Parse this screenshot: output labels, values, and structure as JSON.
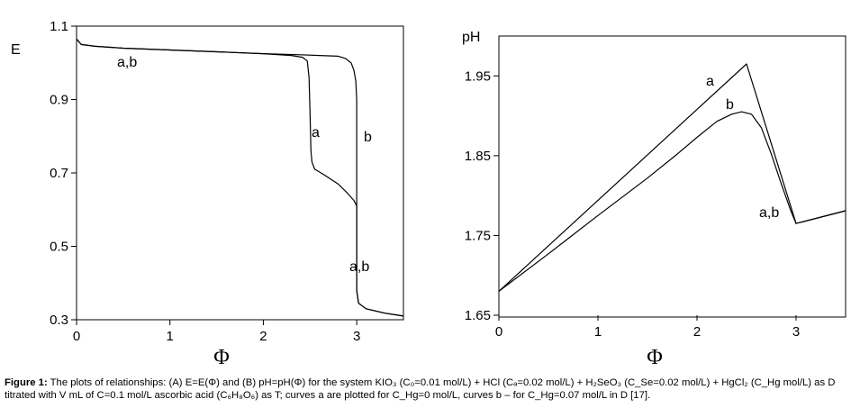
{
  "chart_data": [
    {
      "type": "line",
      "ylabel": "E",
      "xlabel": "Φ",
      "xlim": [
        0,
        3.5
      ],
      "ylim": [
        0.3,
        1.1
      ],
      "x_ticks": [
        "0",
        "1",
        "2",
        "3"
      ],
      "y_ticks": [
        "1.1",
        "0.9",
        "0.7",
        "0.5",
        "0.3"
      ],
      "annotations": [
        "a,b",
        "a",
        "b",
        "a,b"
      ],
      "series": [
        {
          "curve": "a",
          "points": [
            [
              0,
              1.065
            ],
            [
              0.05,
              1.05
            ],
            [
              0.2,
              1.045
            ],
            [
              0.5,
              1.04
            ],
            [
              1.0,
              1.035
            ],
            [
              1.5,
              1.03
            ],
            [
              2.0,
              1.025
            ],
            [
              2.3,
              1.02
            ],
            [
              2.42,
              1.015
            ],
            [
              2.47,
              1.005
            ],
            [
              2.49,
              0.96
            ],
            [
              2.5,
              0.86
            ],
            [
              2.51,
              0.76
            ],
            [
              2.52,
              0.73
            ],
            [
              2.55,
              0.71
            ],
            [
              2.65,
              0.695
            ],
            [
              2.8,
              0.67
            ],
            [
              2.9,
              0.645
            ],
            [
              2.97,
              0.625
            ],
            [
              3.0,
              0.61
            ],
            [
              3.0,
              0.38
            ],
            [
              3.02,
              0.345
            ],
            [
              3.1,
              0.33
            ],
            [
              3.3,
              0.318
            ],
            [
              3.5,
              0.31
            ]
          ]
        },
        {
          "curve": "b",
          "points": [
            [
              0,
              1.065
            ],
            [
              0.05,
              1.05
            ],
            [
              0.2,
              1.045
            ],
            [
              0.5,
              1.04
            ],
            [
              1.0,
              1.035
            ],
            [
              1.5,
              1.03
            ],
            [
              2.0,
              1.025
            ],
            [
              2.4,
              1.022
            ],
            [
              2.6,
              1.02
            ],
            [
              2.8,
              1.018
            ],
            [
              2.88,
              1.012
            ],
            [
              2.94,
              1.0
            ],
            [
              2.97,
              0.98
            ],
            [
              2.99,
              0.95
            ],
            [
              3.0,
              0.9
            ],
            [
              3.0,
              0.38
            ],
            [
              3.02,
              0.345
            ],
            [
              3.1,
              0.33
            ],
            [
              3.3,
              0.318
            ],
            [
              3.5,
              0.31
            ]
          ]
        }
      ]
    },
    {
      "type": "line",
      "ylabel": "pH",
      "xlabel": "Φ",
      "xlim": [
        0,
        3.5
      ],
      "ylim": [
        1.65,
        2.0
      ],
      "x_ticks": [
        "0",
        "1",
        "2",
        "3"
      ],
      "y_ticks": [
        "1.95",
        "1.85",
        "1.75",
        "1.65"
      ],
      "annotations": [
        "a",
        "b",
        "a,b"
      ],
      "series": [
        {
          "curve": "a",
          "points": [
            [
              0,
              1.68
            ],
            [
              2.5,
              1.965
            ],
            [
              3.0,
              1.765
            ],
            [
              3.5,
              1.781
            ]
          ]
        },
        {
          "curve": "b",
          "points": [
            [
              0,
              1.68
            ],
            [
              0.5,
              1.727
            ],
            [
              1.0,
              1.775
            ],
            [
              1.5,
              1.822
            ],
            [
              1.8,
              1.852
            ],
            [
              2.0,
              1.873
            ],
            [
              2.2,
              1.893
            ],
            [
              2.35,
              1.902
            ],
            [
              2.45,
              1.905
            ],
            [
              2.55,
              1.902
            ],
            [
              2.65,
              1.885
            ],
            [
              2.75,
              1.852
            ],
            [
              2.85,
              1.815
            ],
            [
              2.95,
              1.78
            ],
            [
              3.0,
              1.765
            ],
            [
              3.5,
              1.781
            ]
          ]
        }
      ]
    }
  ],
  "caption": {
    "bold": "Figure 1:",
    "text": " The plots of relationships: (A) E=E(Φ) and (B) pH=pH(Φ) for the system KIO₃ (C₀=0.01 mol/L) + HCl (Cₐ=0.02 mol/L) + H₂SeO₃ (C_Se=0.02 mol/L) + HgCl₂ (C_Hg mol/L) as D titrated with V mL of C=0.1 mol/L ascorbic acid (C₆H₈O₆) as T; curves a are plotted for C_Hg=0 mol/L, curves b – for C_Hg=0.07 mol/L in D [17]."
  }
}
